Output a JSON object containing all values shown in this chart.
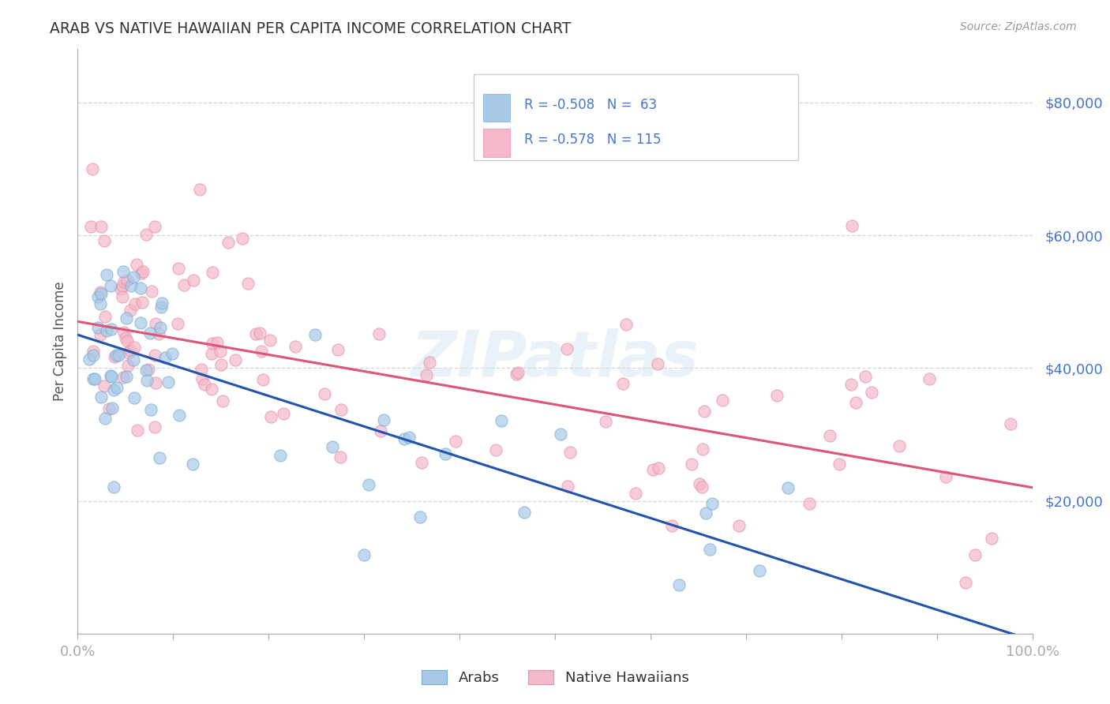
{
  "title": "ARAB VS NATIVE HAWAIIAN PER CAPITA INCOME CORRELATION CHART",
  "source_text": "Source: ZipAtlas.com",
  "ylabel": "Per Capita Income",
  "xlim": [
    0,
    1.0
  ],
  "ylim": [
    0,
    88000
  ],
  "yticks": [
    0,
    20000,
    40000,
    60000,
    80000
  ],
  "ytick_labels": [
    "",
    "$20,000",
    "$40,000",
    "$60,000",
    "$80,000"
  ],
  "arab_color": "#a8c8e8",
  "arab_edge_color": "#7aaed4",
  "arab_line_color": "#2255aa",
  "native_color": "#f5b8c8",
  "native_edge_color": "#e890a8",
  "native_line_color": "#dd5577",
  "legend_text_1": "R = -0.508   N =  63",
  "legend_text_2": "R = -0.578   N = 115",
  "label_arab": "Arabs",
  "label_native": "Native Hawaiians",
  "watermark": "ZIPatlas",
  "grid_color": "#cccccc",
  "background_color": "#ffffff",
  "tick_label_color": "#4477cc",
  "title_color": "#333333",
  "ylabel_color": "#555555",
  "arab_line_intercept": 45000,
  "arab_line_slope": -46000,
  "native_line_intercept": 47000,
  "native_line_slope": -25000
}
